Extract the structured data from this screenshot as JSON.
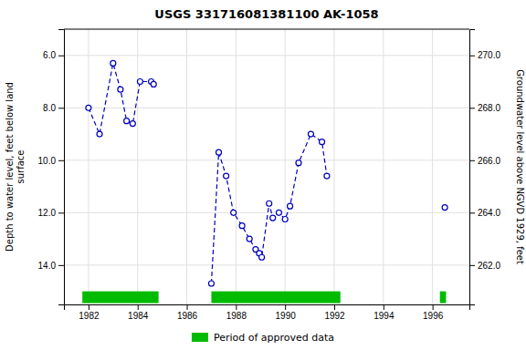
{
  "chart_data": {
    "type": "line",
    "title": "USGS 331716081381100 AK-1058",
    "ylabel": "Depth to water level, feet below land\nsurface",
    "y2label": "Groundwater level above NGVD 1929, feet",
    "x": [
      1982.0,
      1982.45,
      1983.0,
      1983.3,
      1983.55,
      1983.8,
      1984.1,
      1984.55,
      1984.65,
      null,
      1987.0,
      1987.3,
      1987.6,
      1987.9,
      1988.25,
      1988.55,
      1988.8,
      1988.95,
      1989.05,
      1989.35,
      1989.5,
      1989.75,
      1990.0,
      1990.2,
      1990.55,
      1991.05,
      1991.5,
      1991.7,
      null,
      1996.5
    ],
    "series": [
      {
        "color": "#0000bb",
        "marker": "circle",
        "line_style": "dashed",
        "values": [
          8.0,
          9.0,
          6.3,
          7.3,
          8.5,
          8.6,
          7.0,
          7.0,
          7.1,
          null,
          14.7,
          9.7,
          10.6,
          12.0,
          12.5,
          13.0,
          13.4,
          13.55,
          13.7,
          11.65,
          12.2,
          12.0,
          12.25,
          11.75,
          10.1,
          9.0,
          9.3,
          10.6,
          null,
          11.8
        ]
      }
    ],
    "xlim": [
      1981.0,
      1997.5
    ],
    "xticks": [
      1982,
      1984,
      1986,
      1988,
      1990,
      1992,
      1994,
      1996
    ],
    "ylim": [
      15.5,
      5.0
    ],
    "yticks": [
      {
        "value": 6.0,
        "label": "6.0"
      },
      {
        "value": 8.0,
        "label": "8.0"
      },
      {
        "value": 10.0,
        "label": "10.0"
      },
      {
        "value": 12.0,
        "label": "12.0"
      },
      {
        "value": 14.0,
        "label": "14.0"
      }
    ],
    "y2lim": [
      260.5,
      271.0
    ],
    "y2ticks": [
      {
        "value": 270.0,
        "label": "270.0"
      },
      {
        "value": 268.0,
        "label": "268.0"
      },
      {
        "value": 266.0,
        "label": "266.0"
      },
      {
        "value": 264.0,
        "label": "264.0"
      },
      {
        "value": 262.0,
        "label": "262.0"
      }
    ],
    "approved_periods": {
      "name": "Period of approved data",
      "color": "#00bb00",
      "ranges": [
        [
          1981.75,
          1984.85
        ],
        [
          1987.0,
          1992.25
        ],
        [
          1996.3,
          1996.55
        ]
      ],
      "y": 15.0,
      "height": 0.45
    },
    "grid": true,
    "legend": "bottom"
  }
}
